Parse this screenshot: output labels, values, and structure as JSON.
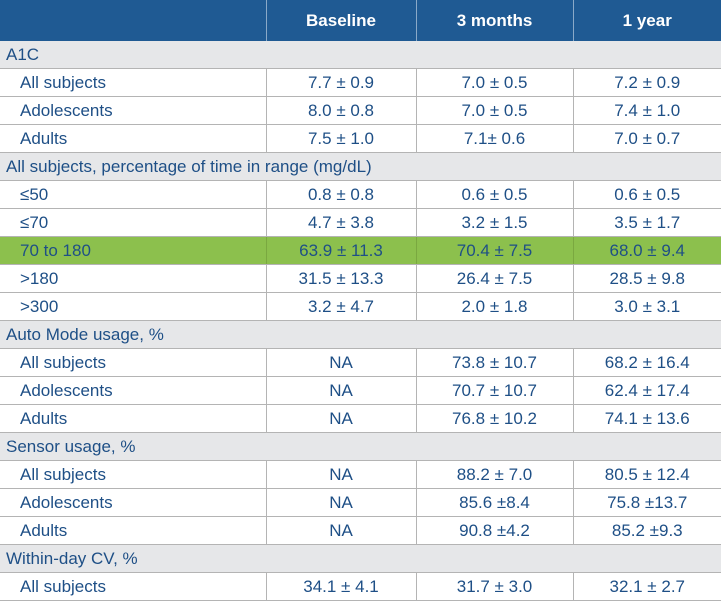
{
  "header": {
    "col0": "",
    "baseline": "Baseline",
    "months3": "3 months",
    "year1": "1 year"
  },
  "sections": [
    {
      "title": "A1C",
      "rows": [
        {
          "label": "All subjects",
          "baseline": "7.7 ± 0.9",
          "months3": "7.0 ± 0.5",
          "year1": "7.2 ± 0.9"
        },
        {
          "label": "Adolescents",
          "baseline": "8.0 ± 0.8",
          "months3": "7.0 ± 0.5",
          "year1": "7.4 ± 1.0"
        },
        {
          "label": "Adults",
          "baseline": "7.5 ± 1.0",
          "months3": "7.1± 0.6",
          "year1": "7.0 ± 0.7"
        }
      ]
    },
    {
      "title": "All subjects, percentage of time in range (mg/dL)",
      "rows": [
        {
          "label": "≤50",
          "baseline": "0.8 ± 0.8",
          "months3": "0.6 ± 0.5",
          "year1": "0.6 ± 0.5"
        },
        {
          "label": "≤70",
          "baseline": "4.7 ± 3.8",
          "months3": "3.2 ± 1.5",
          "year1": "3.5 ± 1.7"
        },
        {
          "label": "70 to 180",
          "baseline": "63.9 ± 11.3",
          "months3": "70.4 ± 7.5",
          "year1": "68.0 ± 9.4"
        },
        {
          "label": ">180",
          "baseline": "31.5 ± 13.3",
          "months3": "26.4 ± 7.5",
          "year1": "28.5 ± 9.8"
        },
        {
          "label": ">300",
          "baseline": "3.2 ± 4.7",
          "months3": "2.0 ± 1.8",
          "year1": "3.0 ± 3.1"
        }
      ]
    },
    {
      "title": "Auto Mode usage, %",
      "rows": [
        {
          "label": "All subjects",
          "baseline": "NA",
          "months3": "73.8 ± 10.7",
          "year1": "68.2 ± 16.4"
        },
        {
          "label": "Adolescents",
          "baseline": "NA",
          "months3": "70.7 ± 10.7",
          "year1": "62.4 ± 17.4"
        },
        {
          "label": "Adults",
          "baseline": "NA",
          "months3": "76.8 ± 10.2",
          "year1": "74.1 ± 13.6"
        }
      ]
    },
    {
      "title": "Sensor usage, %",
      "rows": [
        {
          "label": "All subjects",
          "baseline": "NA",
          "months3": "88.2 ± 7.0",
          "year1": "80.5 ± 12.4"
        },
        {
          "label": "Adolescents",
          "baseline": "NA",
          "months3": "85.6 ±8.4",
          "year1": "75.8 ±13.7"
        },
        {
          "label": "Adults",
          "baseline": "NA",
          "months3": "90.8 ±4.2",
          "year1": "85.2 ±9.3"
        }
      ]
    },
    {
      "title": "Within-day CV, %",
      "rows": [
        {
          "label": "All subjects",
          "baseline": "34.1 ± 4.1",
          "months3": "31.7 ± 3.0",
          "year1": "32.1 ± 2.7"
        }
      ]
    }
  ],
  "colors": {
    "header_bg": "#1f5a93",
    "section_bg": "#e6e7e9",
    "highlight_bg": "#8cc04d",
    "text": "#1e4f86"
  }
}
